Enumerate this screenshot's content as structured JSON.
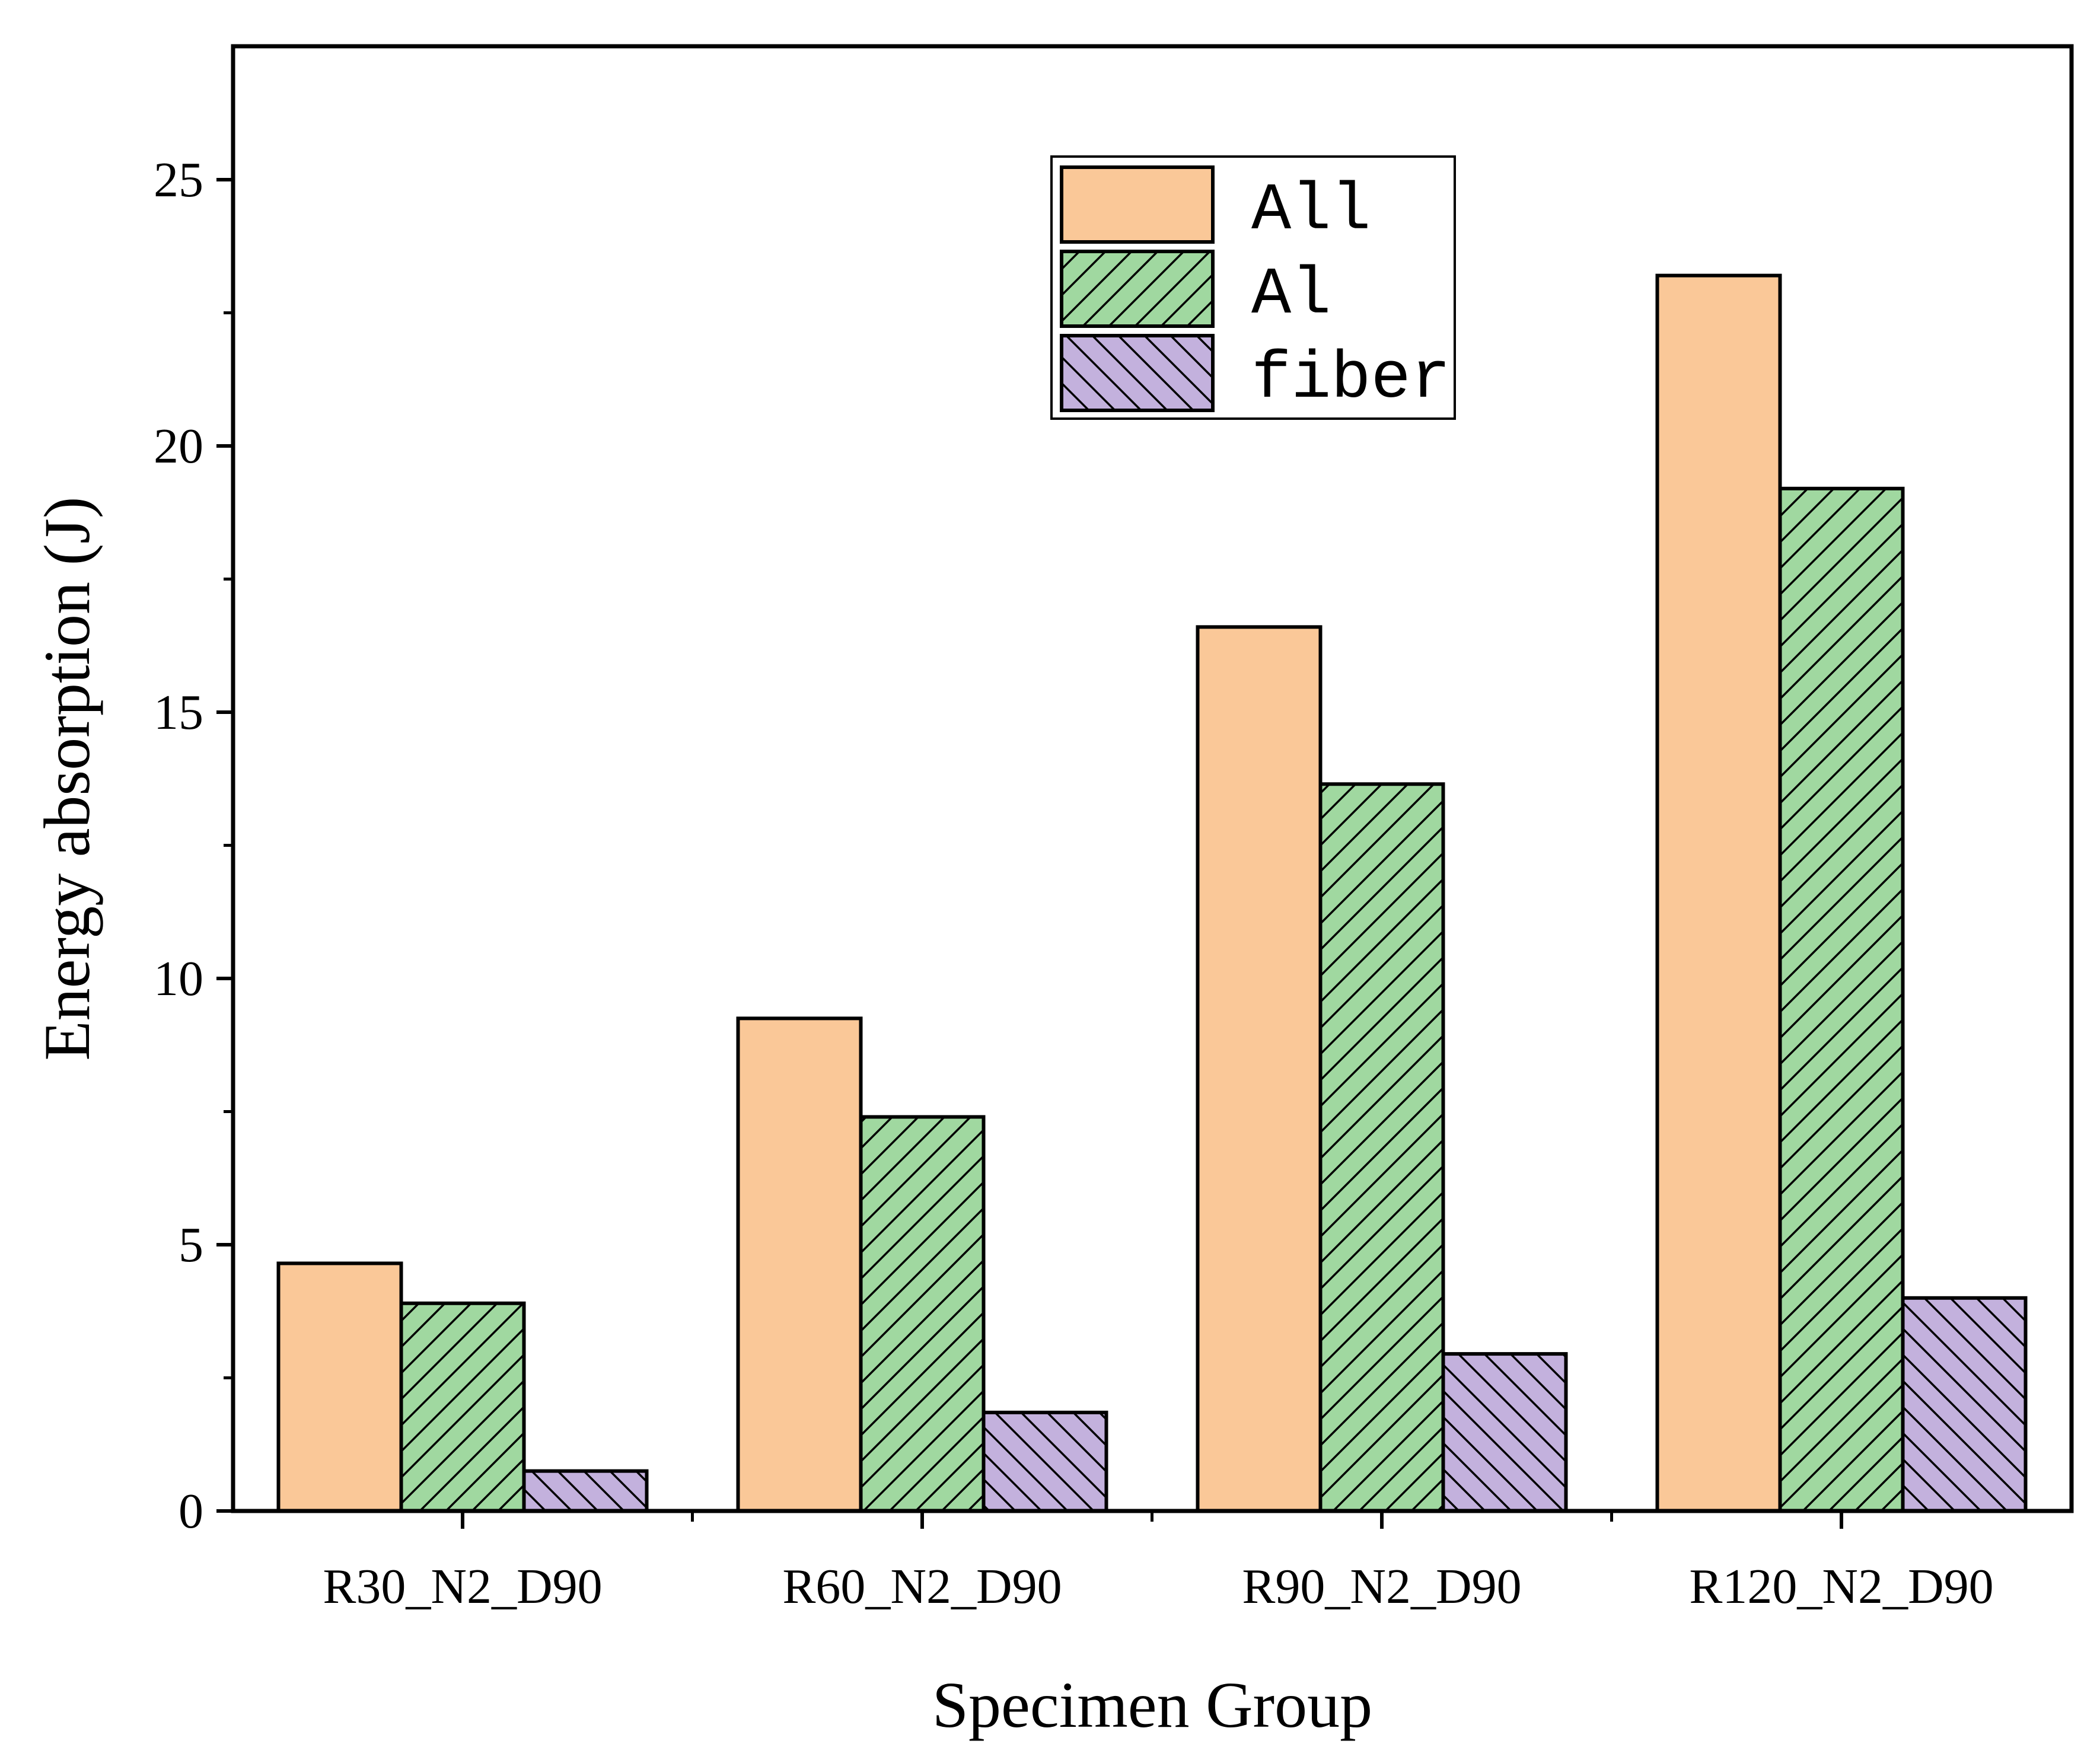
{
  "chart_data": {
    "type": "bar",
    "title": "",
    "xlabel": "Specimen Group",
    "ylabel": "Energy absorption (J)",
    "ylim": [
      0,
      27.5
    ],
    "yticks": [
      0,
      5,
      10,
      15,
      20,
      25
    ],
    "categories": [
      "R30_N2_D90",
      "R60_N2_D90",
      "R90_N2_D90",
      "R120_N2_D90"
    ],
    "series": [
      {
        "name": "All",
        "values": [
          4.65,
          9.25,
          16.6,
          23.2
        ],
        "color": "#FAC898",
        "pattern": "none"
      },
      {
        "name": "Al",
        "values": [
          3.9,
          7.4,
          13.65,
          19.2
        ],
        "color": "#A0D8A0",
        "pattern": "forward-diagonal"
      },
      {
        "name": "fiber",
        "values": [
          0.75,
          1.85,
          2.95,
          4.0
        ],
        "color": "#C3B1DD",
        "pattern": "back-diagonal"
      }
    ],
    "legend_position": "top-center",
    "grid": false
  }
}
